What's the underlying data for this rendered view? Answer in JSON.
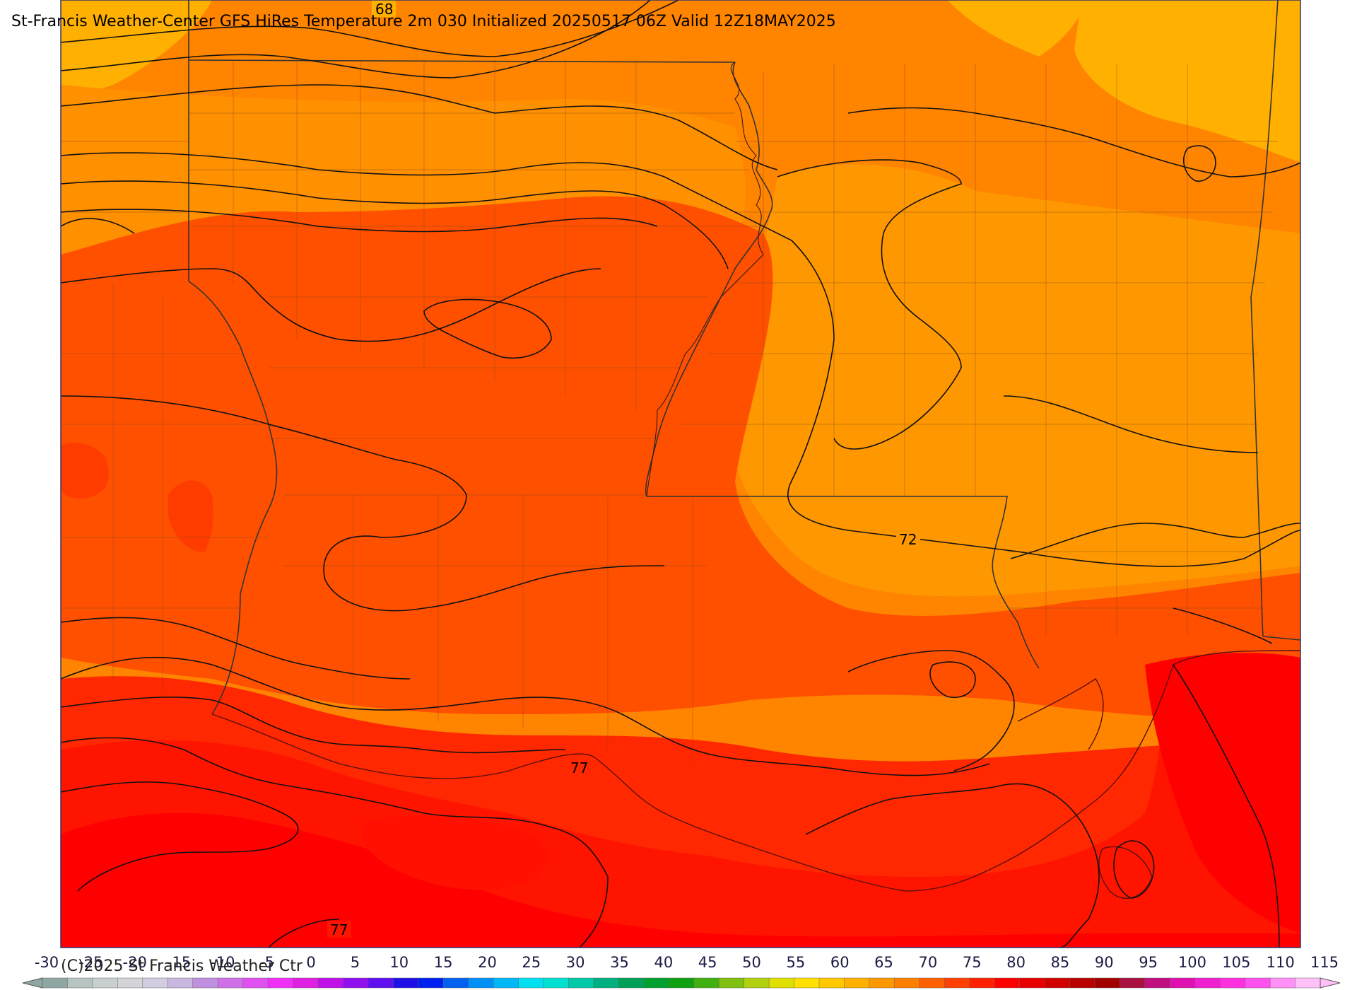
{
  "title": "St-Francis Weather-Center GFS HiRes Temperature 2m  030 Initialized 20250517 06Z Valid 12Z18MAY2025",
  "copyright": "(C)2025 St Francis Weather Ctr",
  "contour_labels": [
    "68",
    "72",
    "77",
    "77"
  ],
  "colorbar": {
    "ticks": [
      -30,
      -25,
      -20,
      -15,
      -10,
      -5,
      0,
      5,
      10,
      15,
      20,
      25,
      30,
      35,
      40,
      45,
      50,
      55,
      60,
      65,
      70,
      75,
      80,
      85,
      90,
      95,
      100,
      105,
      110,
      115
    ],
    "colors": [
      "#8fa7a2",
      "#b8c4c2",
      "#c9cfcf",
      "#d4d4d8",
      "#d2cde0",
      "#c8b8e0",
      "#c090e0",
      "#d070e8",
      "#e050f0",
      "#f030f8",
      "#e020e0",
      "#c010e8",
      "#9010f0",
      "#6010f0",
      "#2010e8",
      "#0020f0",
      "#0060f0",
      "#0090f8",
      "#00b8f8",
      "#00e0f0",
      "#00e0d0",
      "#00c8a8",
      "#00b080",
      "#00a058",
      "#00a030",
      "#10a010",
      "#40b010",
      "#80c010",
      "#b0d010",
      "#e0e000",
      "#ffe000",
      "#ffc800",
      "#ffb000",
      "#ff9800",
      "#ff8000",
      "#ff6000",
      "#ff4000",
      "#ff2000",
      "#ff0000",
      "#e80000",
      "#d00000",
      "#b80000",
      "#a00000",
      "#a81040",
      "#c01080",
      "#e010b0",
      "#f020d0",
      "#ff30e0",
      "#ff50f0",
      "#ff90f8",
      "#ffc0f8"
    ]
  },
  "field_colors": {
    "c66": "#ffb000",
    "c68": "#ff9800",
    "c70": "#ff8000",
    "c72": "#ff6400",
    "c74": "#ff5000",
    "c76": "#ff3c00",
    "c78": "#ff2800",
    "c80": "#ff1400",
    "c82": "#ff0000"
  }
}
